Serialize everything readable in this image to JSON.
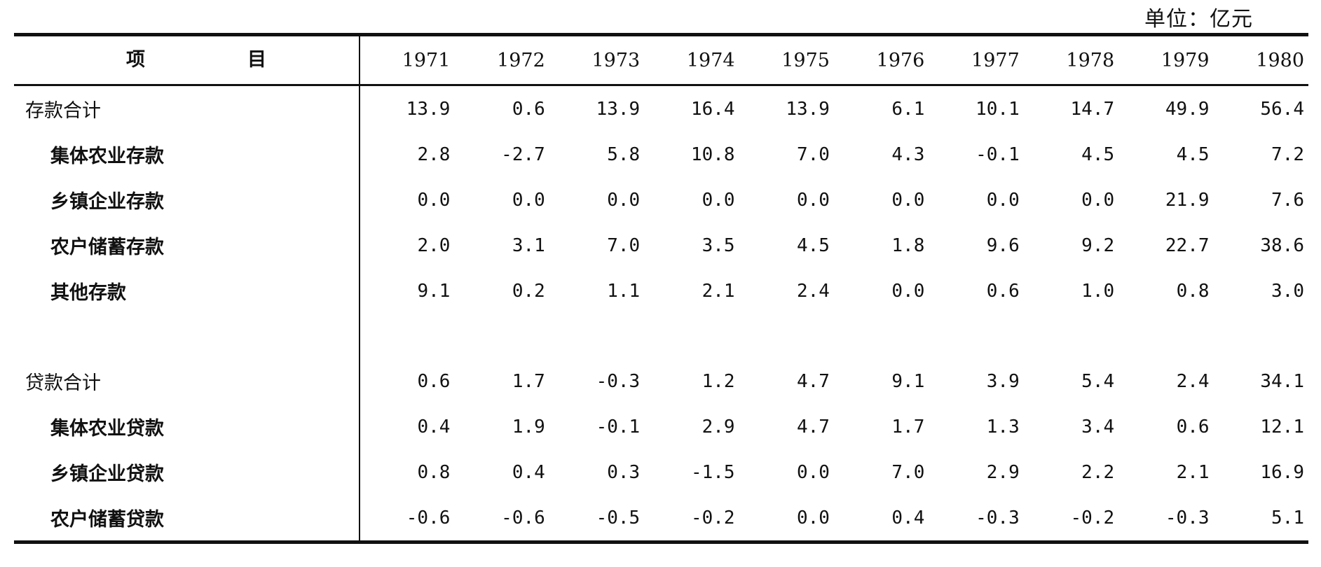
{
  "unit": "单位：亿元",
  "header": {
    "item_left": "项",
    "item_right": "目"
  },
  "chart_data": {
    "type": "table",
    "unit": "单位：亿元",
    "columns": [
      "1971",
      "1972",
      "1973",
      "1974",
      "1975",
      "1976",
      "1977",
      "1978",
      "1979",
      "1980"
    ],
    "rows": [
      {
        "label": "存款合计",
        "level": 0,
        "values": [
          "13.9",
          "0.6",
          "13.9",
          "16.4",
          "13.9",
          "6.1",
          "10.1",
          "14.7",
          "49.9",
          "56.4"
        ]
      },
      {
        "label": "集体农业存款",
        "level": 1,
        "values": [
          "2.8",
          "-2.7",
          "5.8",
          "10.8",
          "7.0",
          "4.3",
          "-0.1",
          "4.5",
          "4.5",
          "7.2"
        ]
      },
      {
        "label": "乡镇企业存款",
        "level": 1,
        "values": [
          "0.0",
          "0.0",
          "0.0",
          "0.0",
          "0.0",
          "0.0",
          "0.0",
          "0.0",
          "21.9",
          "7.6"
        ]
      },
      {
        "label": "农户储蓄存款",
        "level": 1,
        "values": [
          "2.0",
          "3.1",
          "7.0",
          "3.5",
          "4.5",
          "1.8",
          "9.6",
          "9.2",
          "22.7",
          "38.6"
        ]
      },
      {
        "label": "其他存款",
        "level": 1,
        "values": [
          "9.1",
          "0.2",
          "1.1",
          "2.1",
          "2.4",
          "0.0",
          "0.6",
          "1.0",
          "0.8",
          "3.0"
        ]
      },
      {
        "label": "贷款合计",
        "level": 0,
        "values": [
          "0.6",
          "1.7",
          "-0.3",
          "1.2",
          "4.7",
          "9.1",
          "3.9",
          "5.4",
          "2.4",
          "34.1"
        ]
      },
      {
        "label": "集体农业贷款",
        "level": 1,
        "values": [
          "0.4",
          "1.9",
          "-0.1",
          "2.9",
          "4.7",
          "1.7",
          "1.3",
          "3.4",
          "0.6",
          "12.1"
        ]
      },
      {
        "label": "乡镇企业贷款",
        "level": 1,
        "values": [
          "0.8",
          "0.4",
          "0.3",
          "-1.5",
          "0.0",
          "7.0",
          "2.9",
          "2.2",
          "2.1",
          "16.9"
        ]
      },
      {
        "label": "农户储蓄贷款",
        "level": 1,
        "values": [
          "-0.6",
          "-0.6",
          "-0.5",
          "-0.2",
          "0.0",
          "0.4",
          "-0.3",
          "-0.2",
          "-0.3",
          "5.1"
        ]
      }
    ]
  }
}
